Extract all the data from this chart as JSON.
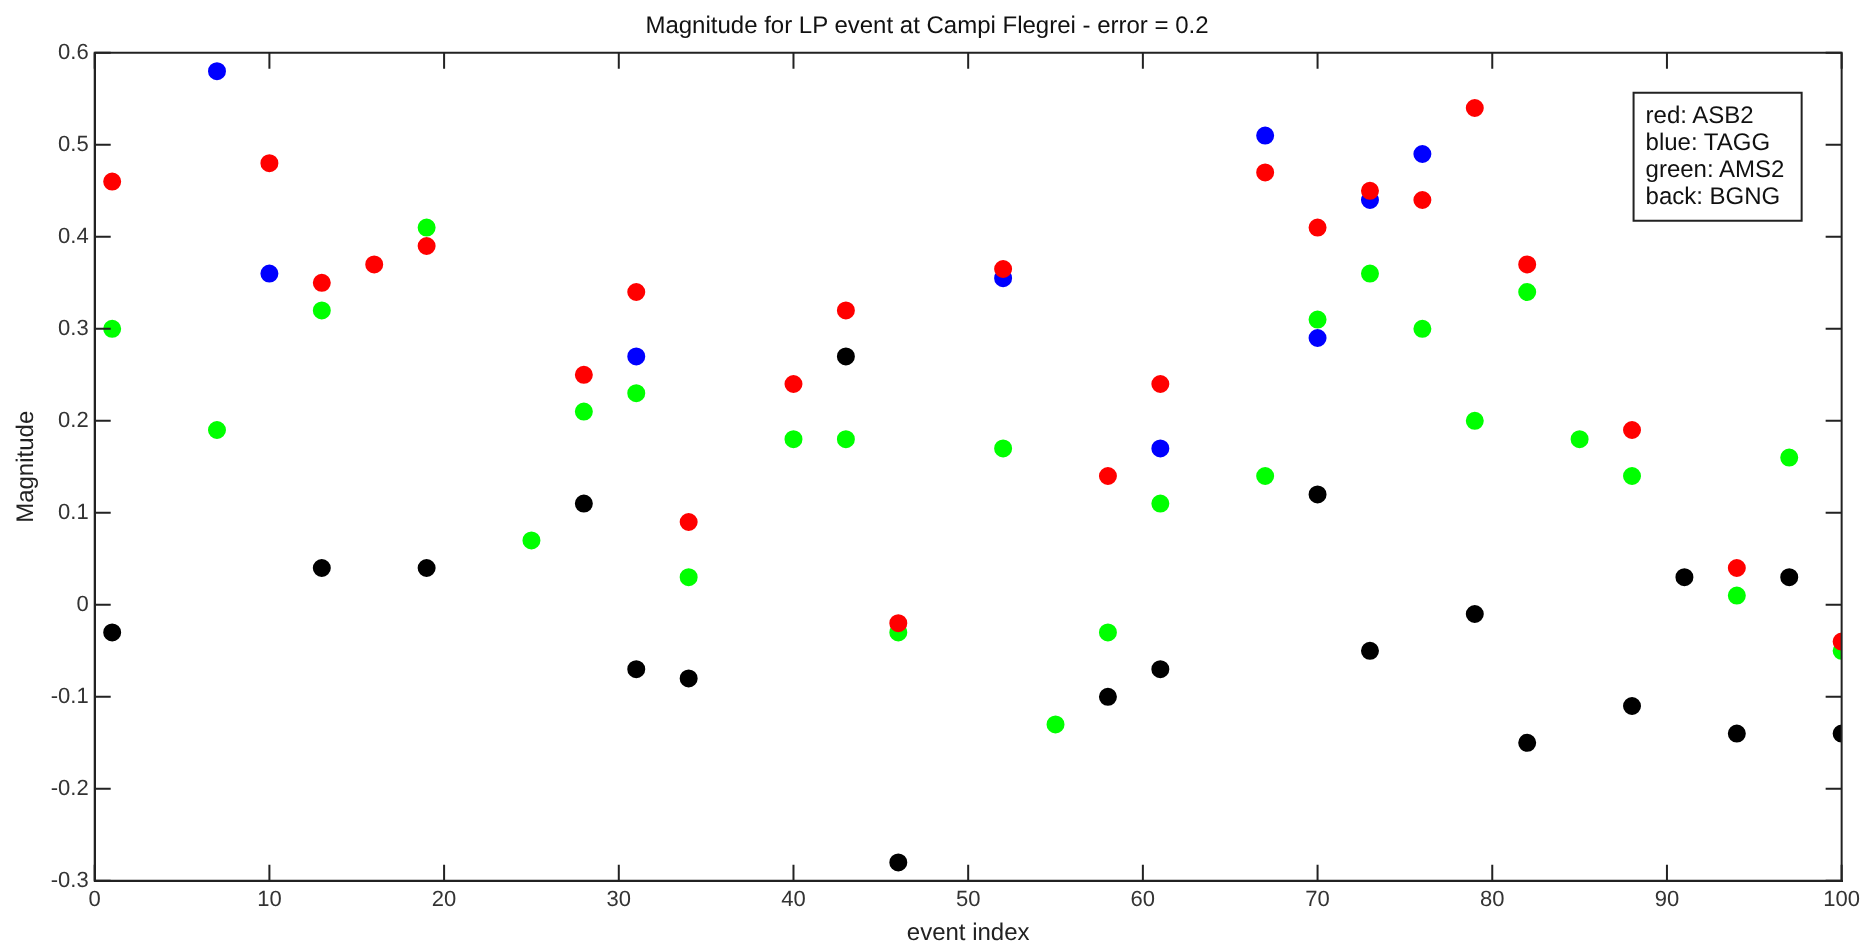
{
  "chart_data": {
    "type": "scatter",
    "title": "Magnitude for LP event at Campi Flegrei - error = 0.2",
    "xlabel": "event index",
    "ylabel": "Magnitude",
    "xlim": [
      0,
      100
    ],
    "xticks": [
      0,
      10,
      20,
      30,
      40,
      50,
      60,
      70,
      80,
      90,
      100
    ],
    "ylim": [
      -0.3,
      0.6
    ],
    "yticks": [
      -0.3,
      -0.2,
      -0.1,
      0,
      0.1,
      0.2,
      0.3,
      0.4,
      0.5,
      0.6
    ],
    "grid": false,
    "marker": "circle",
    "annotations": [
      "red: ASB2",
      "blue: TAGG",
      "green: AMS2",
      "back: BGNG"
    ],
    "series": [
      {
        "color": "#ff0000",
        "x": [
          1,
          10,
          13,
          16,
          19,
          28,
          31,
          34,
          40,
          43,
          46,
          52,
          58,
          61,
          67,
          70,
          73,
          76,
          79,
          82,
          88,
          94,
          100
        ],
        "values": [
          0.46,
          0.48,
          0.35,
          0.37,
          0.39,
          0.25,
          0.34,
          0.09,
          0.24,
          0.32,
          -0.02,
          0.365,
          0.14,
          0.24,
          0.47,
          0.41,
          0.45,
          0.44,
          0.54,
          0.37,
          0.19,
          0.04,
          -0.04
        ]
      },
      {
        "color": "#0000ff",
        "x": [
          7,
          10,
          31,
          52,
          61,
          67,
          70,
          73,
          76
        ],
        "values": [
          0.58,
          0.36,
          0.27,
          0.355,
          0.17,
          0.51,
          0.29,
          0.44,
          0.49
        ]
      },
      {
        "color": "#00ff00",
        "x": [
          1,
          7,
          13,
          19,
          25,
          28,
          31,
          34,
          40,
          43,
          46,
          52,
          55,
          58,
          61,
          67,
          70,
          73,
          76,
          79,
          82,
          85,
          88,
          94,
          97,
          100
        ],
        "values": [
          0.3,
          0.19,
          0.32,
          0.41,
          0.07,
          0.21,
          0.23,
          0.03,
          0.18,
          0.18,
          -0.03,
          0.17,
          -0.13,
          -0.03,
          0.11,
          0.14,
          0.31,
          0.36,
          0.3,
          0.2,
          0.34,
          0.18,
          0.14,
          0.01,
          0.16,
          -0.05
        ]
      },
      {
        "color": "#000000",
        "x": [
          1,
          13,
          19,
          28,
          31,
          34,
          43,
          46,
          58,
          61,
          70,
          73,
          79,
          82,
          88,
          91,
          94,
          97,
          100
        ],
        "values": [
          -0.03,
          0.04,
          0.04,
          0.11,
          -0.07,
          -0.08,
          0.27,
          -0.28,
          -0.1,
          -0.07,
          0.12,
          -0.05,
          -0.01,
          -0.15,
          -0.11,
          0.03,
          -0.14,
          0.03,
          -0.14
        ]
      }
    ]
  }
}
